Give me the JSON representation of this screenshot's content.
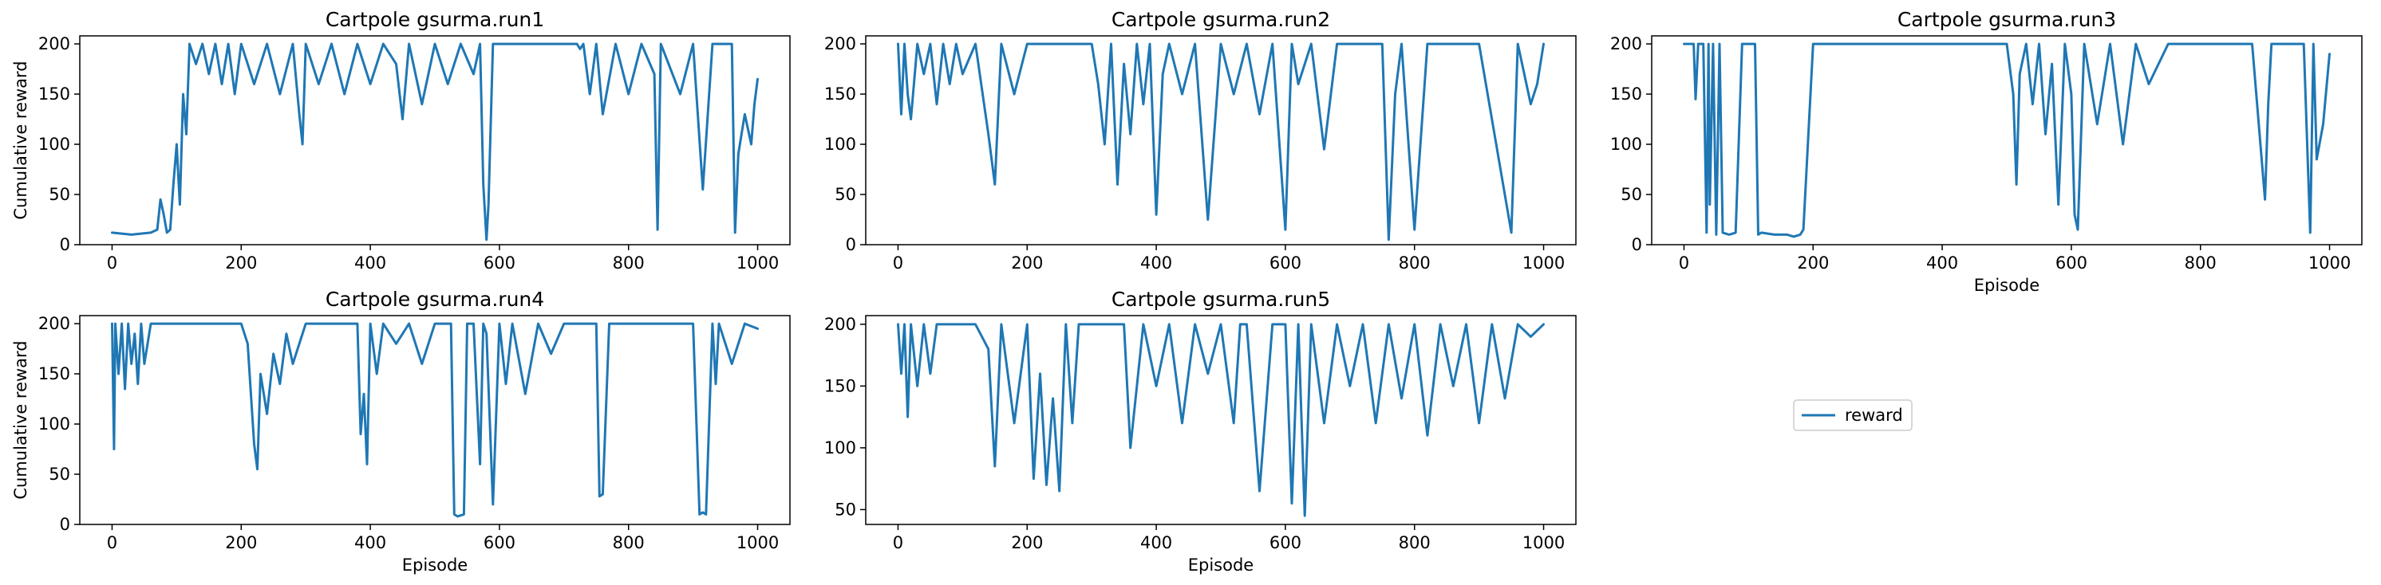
{
  "figure": {
    "legend_label": "reward",
    "series_color": "#1f77b4",
    "legend_placement": "center-right"
  },
  "chart_data": [
    {
      "type": "line",
      "title": "Cartpole gsurma.run1",
      "xlabel": "",
      "ylabel": "Cumulative reward",
      "xlim": [
        -50,
        1050
      ],
      "ylim": [
        0,
        208
      ],
      "xticks": [
        "0",
        "200",
        "400",
        "600",
        "800",
        "1000"
      ],
      "yticks": [
        "0",
        "50",
        "100",
        "150",
        "200"
      ],
      "series": [
        {
          "name": "reward",
          "x": [
            0,
            30,
            60,
            70,
            75,
            80,
            85,
            90,
            95,
            100,
            105,
            110,
            115,
            120,
            130,
            140,
            150,
            160,
            170,
            180,
            190,
            200,
            220,
            240,
            260,
            280,
            290,
            295,
            300,
            320,
            340,
            360,
            380,
            400,
            420,
            440,
            450,
            460,
            480,
            500,
            520,
            540,
            560,
            570,
            575,
            580,
            583,
            590,
            600,
            650,
            700,
            720,
            725,
            730,
            740,
            750,
            760,
            780,
            800,
            820,
            840,
            845,
            850,
            880,
            900,
            915,
            930,
            950,
            960,
            965,
            970,
            975,
            980,
            990,
            995,
            1000
          ],
          "y": [
            12,
            10,
            12,
            15,
            45,
            30,
            12,
            15,
            60,
            100,
            40,
            150,
            110,
            200,
            180,
            200,
            170,
            200,
            160,
            200,
            150,
            200,
            160,
            200,
            150,
            200,
            130,
            100,
            200,
            160,
            200,
            150,
            200,
            160,
            200,
            180,
            125,
            200,
            140,
            200,
            160,
            200,
            170,
            200,
            60,
            5,
            40,
            200,
            200,
            200,
            200,
            200,
            195,
            200,
            150,
            200,
            130,
            200,
            150,
            200,
            170,
            15,
            200,
            150,
            200,
            55,
            200,
            200,
            200,
            12,
            90,
            110,
            130,
            100,
            140,
            165
          ]
        }
      ]
    },
    {
      "type": "line",
      "title": "Cartpole gsurma.run2",
      "xlabel": "",
      "ylabel": "",
      "xlim": [
        -50,
        1050
      ],
      "ylim": [
        0,
        208
      ],
      "xticks": [
        "0",
        "200",
        "400",
        "600",
        "800",
        "1000"
      ],
      "yticks": [
        "0",
        "50",
        "100",
        "150",
        "200"
      ],
      "series": [
        {
          "name": "reward",
          "x": [
            0,
            5,
            10,
            15,
            20,
            30,
            40,
            50,
            60,
            70,
            80,
            90,
            100,
            120,
            140,
            150,
            160,
            180,
            200,
            220,
            260,
            300,
            310,
            320,
            330,
            340,
            350,
            360,
            370,
            380,
            390,
            400,
            410,
            420,
            440,
            460,
            480,
            500,
            520,
            540,
            560,
            580,
            600,
            610,
            620,
            640,
            660,
            680,
            700,
            750,
            760,
            770,
            780,
            800,
            820,
            850,
            900,
            950,
            960,
            980,
            990,
            1000
          ],
          "y": [
            200,
            130,
            200,
            150,
            125,
            200,
            170,
            200,
            140,
            200,
            160,
            200,
            170,
            200,
            110,
            60,
            200,
            150,
            200,
            200,
            200,
            200,
            160,
            100,
            200,
            60,
            180,
            110,
            200,
            140,
            200,
            30,
            170,
            200,
            150,
            200,
            25,
            200,
            150,
            200,
            130,
            200,
            15,
            200,
            160,
            200,
            95,
            200,
            200,
            200,
            5,
            150,
            200,
            15,
            200,
            200,
            200,
            12,
            200,
            140,
            160,
            200
          ]
        }
      ]
    },
    {
      "type": "line",
      "title": "Cartpole gsurma.run3",
      "xlabel": "Episode",
      "ylabel": "",
      "xlim": [
        -50,
        1050
      ],
      "ylim": [
        0,
        208
      ],
      "xticks": [
        "0",
        "200",
        "400",
        "600",
        "800",
        "1000"
      ],
      "yticks": [
        "0",
        "50",
        "100",
        "150",
        "200"
      ],
      "series": [
        {
          "name": "reward",
          "x": [
            0,
            15,
            18,
            22,
            30,
            35,
            38,
            40,
            45,
            50,
            55,
            60,
            70,
            80,
            90,
            95,
            100,
            110,
            115,
            120,
            140,
            160,
            170,
            180,
            185,
            200,
            300,
            400,
            500,
            510,
            515,
            520,
            530,
            540,
            550,
            560,
            570,
            580,
            590,
            600,
            605,
            610,
            620,
            640,
            660,
            680,
            700,
            720,
            750,
            800,
            850,
            880,
            900,
            905,
            910,
            940,
            960,
            970,
            975,
            980,
            990,
            1000
          ],
          "y": [
            200,
            200,
            145,
            200,
            200,
            12,
            200,
            40,
            200,
            10,
            200,
            12,
            10,
            12,
            200,
            200,
            200,
            200,
            10,
            12,
            10,
            10,
            8,
            10,
            15,
            200,
            200,
            200,
            200,
            150,
            60,
            170,
            200,
            140,
            200,
            110,
            180,
            40,
            200,
            150,
            30,
            15,
            200,
            120,
            200,
            100,
            200,
            160,
            200,
            200,
            200,
            200,
            45,
            140,
            200,
            200,
            200,
            12,
            200,
            85,
            120,
            190
          ]
        }
      ]
    },
    {
      "type": "line",
      "title": "Cartpole gsurma.run4",
      "xlabel": "Episode",
      "ylabel": "Cumulative reward",
      "xlim": [
        -50,
        1050
      ],
      "ylim": [
        0,
        208
      ],
      "xticks": [
        "0",
        "200",
        "400",
        "600",
        "800",
        "1000"
      ],
      "yticks": [
        "0",
        "50",
        "100",
        "150",
        "200"
      ],
      "series": [
        {
          "name": "reward",
          "x": [
            0,
            3,
            5,
            10,
            15,
            20,
            25,
            30,
            35,
            40,
            45,
            50,
            60,
            100,
            150,
            180,
            200,
            210,
            220,
            225,
            230,
            240,
            250,
            260,
            270,
            280,
            300,
            350,
            380,
            385,
            390,
            395,
            400,
            410,
            420,
            440,
            460,
            480,
            500,
            520,
            525,
            530,
            535,
            545,
            550,
            560,
            570,
            575,
            580,
            590,
            600,
            610,
            620,
            640,
            660,
            680,
            700,
            750,
            755,
            760,
            770,
            800,
            850,
            900,
            910,
            915,
            920,
            930,
            935,
            940,
            960,
            980,
            1000
          ],
          "y": [
            200,
            75,
            200,
            150,
            200,
            135,
            200,
            160,
            190,
            140,
            200,
            160,
            200,
            200,
            200,
            200,
            200,
            180,
            80,
            55,
            150,
            110,
            170,
            140,
            190,
            160,
            200,
            200,
            200,
            90,
            130,
            60,
            200,
            150,
            200,
            180,
            200,
            160,
            200,
            200,
            200,
            10,
            8,
            10,
            200,
            200,
            60,
            200,
            190,
            20,
            200,
            140,
            200,
            130,
            200,
            170,
            200,
            200,
            28,
            30,
            200,
            200,
            200,
            200,
            10,
            12,
            10,
            200,
            140,
            200,
            160,
            200,
            195
          ]
        }
      ]
    },
    {
      "type": "line",
      "title": "Cartpole gsurma.run5",
      "xlabel": "Episode",
      "ylabel": "",
      "xlim": [
        -50,
        1050
      ],
      "ylim": [
        38,
        207
      ],
      "xticks": [
        "0",
        "200",
        "400",
        "600",
        "800",
        "1000"
      ],
      "yticks": [
        "50",
        "100",
        "150",
        "200"
      ],
      "series": [
        {
          "name": "reward",
          "x": [
            0,
            5,
            10,
            15,
            20,
            30,
            40,
            50,
            60,
            70,
            100,
            120,
            140,
            150,
            160,
            180,
            200,
            210,
            220,
            230,
            240,
            250,
            260,
            270,
            280,
            300,
            350,
            360,
            380,
            400,
            420,
            440,
            460,
            480,
            500,
            520,
            530,
            540,
            560,
            580,
            600,
            610,
            620,
            630,
            640,
            660,
            680,
            700,
            720,
            740,
            760,
            780,
            800,
            820,
            840,
            860,
            880,
            900,
            920,
            940,
            960,
            980,
            1000
          ],
          "y": [
            200,
            160,
            200,
            125,
            200,
            150,
            200,
            160,
            200,
            200,
            200,
            200,
            180,
            85,
            200,
            120,
            200,
            75,
            160,
            70,
            140,
            65,
            200,
            120,
            200,
            200,
            200,
            100,
            200,
            150,
            200,
            120,
            200,
            160,
            200,
            120,
            200,
            200,
            65,
            200,
            200,
            55,
            200,
            45,
            200,
            120,
            200,
            150,
            200,
            120,
            200,
            140,
            200,
            110,
            200,
            150,
            200,
            120,
            200,
            140,
            200,
            190,
            200
          ]
        }
      ]
    }
  ]
}
